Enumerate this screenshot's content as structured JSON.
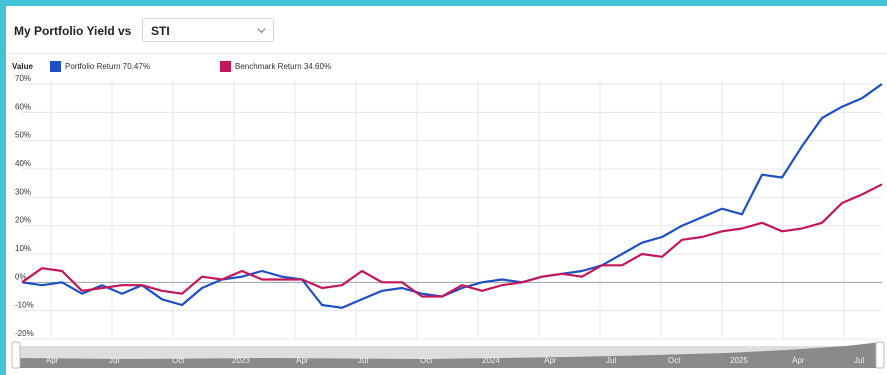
{
  "header": {
    "title": "My Portfolio Yield vs",
    "select_value": "STI"
  },
  "legend": {
    "label": "Value",
    "items": [
      {
        "text": "Portfolio Return 70.47%",
        "color": "#1f4fc4"
      },
      {
        "text": "Benchmark Return 34.60%",
        "color": "#c2185b"
      }
    ]
  },
  "chart_data": {
    "type": "line",
    "ylim": [
      -20,
      70
    ],
    "yticks": [
      "70%",
      "60%",
      "50%",
      "40%",
      "30%",
      "20%",
      "10%",
      "0%",
      "-10%",
      "-20%"
    ],
    "grid": true,
    "legend_position": "top-left",
    "x": [
      0,
      1,
      2,
      3,
      4,
      5,
      6,
      7,
      8,
      9,
      10,
      11,
      12,
      13,
      14,
      15,
      16,
      17,
      18,
      19,
      20,
      21,
      22,
      23,
      24,
      25,
      26,
      27,
      28,
      29,
      30,
      31,
      32,
      33,
      34,
      35,
      36,
      37,
      38,
      39,
      40,
      41,
      42,
      43,
      44,
      45,
      46,
      47,
      48,
      49,
      50,
      51,
      52,
      53,
      54
    ],
    "series": [
      {
        "name": "Portfolio Return 70.47%",
        "color": "#1f4fc4",
        "values": [
          0,
          -1,
          0,
          -4,
          -1,
          -4,
          -1,
          -6,
          -8,
          -2,
          1,
          2,
          4,
          2,
          1,
          -8,
          -9,
          -6,
          -3,
          -2,
          -4,
          -5,
          -2,
          0,
          1,
          0,
          2,
          3,
          4,
          6,
          10,
          14,
          16,
          20,
          23,
          26,
          24,
          38,
          37,
          48,
          58,
          62,
          65,
          70,
          70,
          70,
          70,
          70,
          70,
          70,
          70,
          70,
          70,
          70,
          70
        ],
        "points": [
          [
            0,
            0
          ],
          [
            1,
            -1
          ],
          [
            2,
            0
          ],
          [
            3,
            -4
          ],
          [
            4,
            -1
          ],
          [
            5,
            -4
          ],
          [
            6,
            -1
          ],
          [
            7,
            -6
          ],
          [
            8,
            -8
          ],
          [
            9,
            -2
          ],
          [
            10,
            1
          ],
          [
            11,
            2
          ],
          [
            12,
            4
          ],
          [
            13,
            2
          ],
          [
            14,
            1
          ],
          [
            15,
            -8
          ],
          [
            16,
            -9
          ],
          [
            17,
            -6
          ],
          [
            18,
            -3
          ],
          [
            19,
            -2
          ],
          [
            20,
            -4
          ],
          [
            21,
            -5
          ],
          [
            22,
            -2
          ],
          [
            23,
            0
          ],
          [
            24,
            1
          ],
          [
            25,
            0
          ],
          [
            26,
            2
          ],
          [
            27,
            3
          ],
          [
            28,
            4
          ],
          [
            29,
            6
          ],
          [
            30,
            10
          ],
          [
            31,
            14
          ],
          [
            32,
            16
          ],
          [
            33,
            20
          ],
          [
            34,
            23
          ],
          [
            35,
            26
          ],
          [
            36,
            24
          ],
          [
            37,
            38
          ],
          [
            38,
            37
          ],
          [
            39,
            48
          ],
          [
            40,
            58
          ],
          [
            41,
            62
          ],
          [
            42,
            65
          ],
          [
            43,
            70
          ]
        ]
      },
      {
        "name": "Benchmark Return 34.60%",
        "color": "#c2185b",
        "points": [
          [
            0,
            0
          ],
          [
            1,
            5
          ],
          [
            2,
            4
          ],
          [
            3,
            -3
          ],
          [
            4,
            -2
          ],
          [
            5,
            -1
          ],
          [
            6,
            -1
          ],
          [
            7,
            -3
          ],
          [
            8,
            -4
          ],
          [
            9,
            2
          ],
          [
            10,
            1
          ],
          [
            11,
            4
          ],
          [
            12,
            1
          ],
          [
            13,
            1
          ],
          [
            14,
            1
          ],
          [
            15,
            -2
          ],
          [
            16,
            -1
          ],
          [
            17,
            4
          ],
          [
            18,
            0
          ],
          [
            19,
            0
          ],
          [
            20,
            -5
          ],
          [
            21,
            -5
          ],
          [
            22,
            -1
          ],
          [
            23,
            -3
          ],
          [
            24,
            -1
          ],
          [
            25,
            0
          ],
          [
            26,
            2
          ],
          [
            27,
            3
          ],
          [
            28,
            2
          ],
          [
            29,
            6
          ],
          [
            30,
            6
          ],
          [
            31,
            10
          ],
          [
            32,
            9
          ],
          [
            33,
            15
          ],
          [
            34,
            16
          ],
          [
            35,
            18
          ],
          [
            36,
            19
          ],
          [
            37,
            21
          ],
          [
            38,
            18
          ],
          [
            39,
            19
          ],
          [
            40,
            21
          ],
          [
            41,
            28
          ],
          [
            42,
            31
          ],
          [
            43,
            34.6
          ]
        ]
      }
    ],
    "navigator": {
      "labels": [
        "Apr",
        "Jul",
        "Oct",
        "2023",
        "Apr",
        "Jul",
        "Oct",
        "2024",
        "Apr",
        "Jul",
        "Oct",
        "2025",
        "Apr",
        "Jul"
      ]
    }
  }
}
